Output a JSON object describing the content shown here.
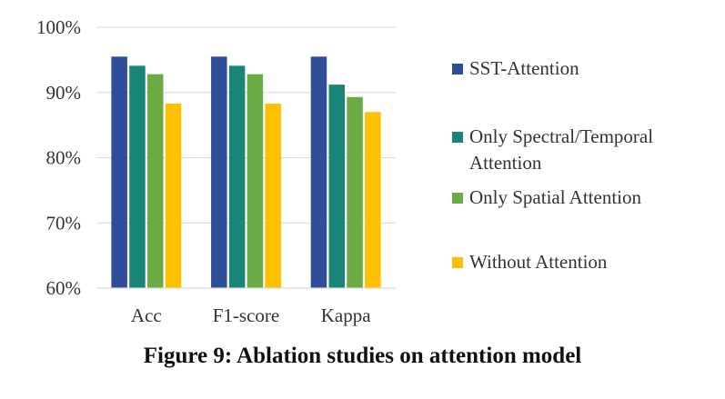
{
  "caption": "Figure 9: Ablation studies on attention model",
  "chart_data": {
    "type": "bar",
    "title": "",
    "xlabel": "",
    "ylabel": "",
    "categories": [
      "Acc",
      "F1-score",
      "Kappa"
    ],
    "ylim": [
      60,
      100
    ],
    "y_ticks": [
      "60%",
      "70%",
      "80%",
      "90%",
      "100%"
    ],
    "y_tick_values": [
      60,
      70,
      80,
      90,
      100
    ],
    "grid": true,
    "legend_position": "right",
    "series": [
      {
        "name": "SST-Attention",
        "color": "#2f4e99",
        "values": [
          95.5,
          95.5,
          95.5
        ]
      },
      {
        "name": "Only Spectral/Temporal Attention",
        "color": "#178577",
        "values": [
          94.1,
          94.1,
          91.2
        ]
      },
      {
        "name": "Only Spatial Attention",
        "color": "#6aab43",
        "values": [
          92.8,
          92.8,
          89.3
        ]
      },
      {
        "name": "Without Attention",
        "color": "#ffc000",
        "values": [
          88.3,
          88.3,
          87.0
        ]
      }
    ]
  }
}
